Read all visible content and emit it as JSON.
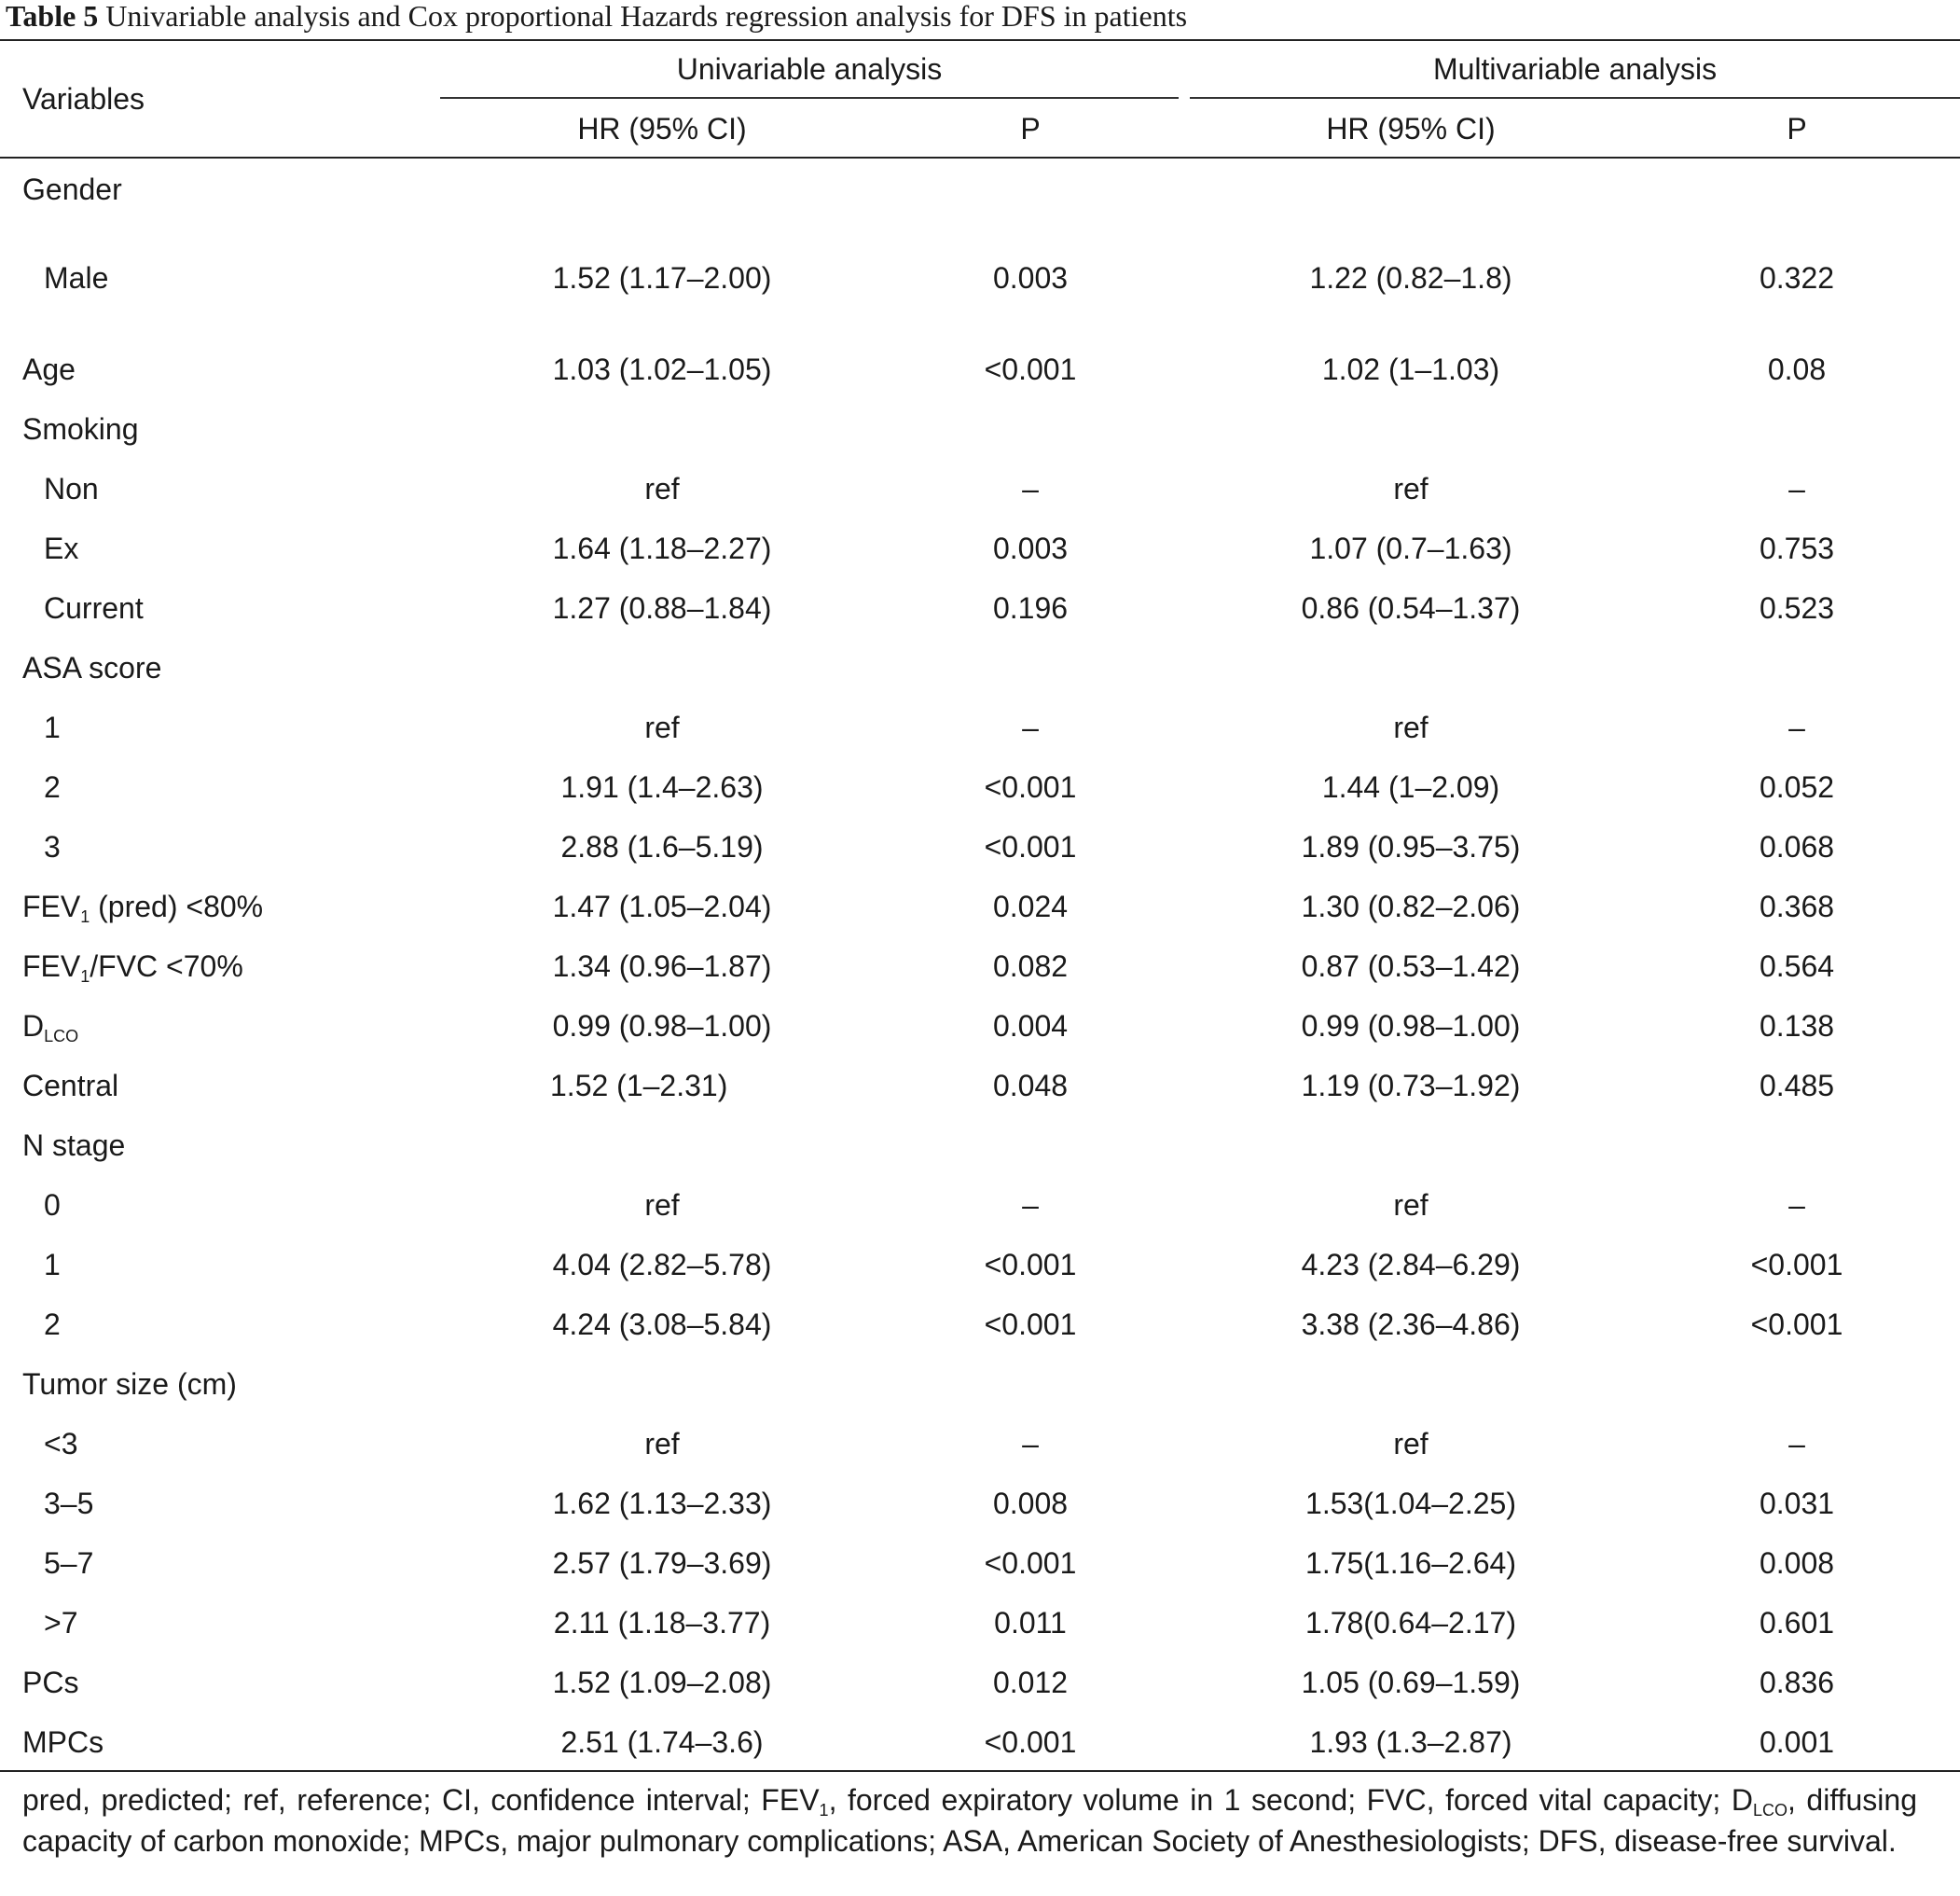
{
  "caption": {
    "label": "Table 5",
    "text": "Univariable analysis and Cox proportional Hazards regression analysis for DFS in patients"
  },
  "header": {
    "variables": "Variables",
    "univariable": "Univariable analysis",
    "multivariable": "Multivariable analysis",
    "uni_hr": "HR (95% CI)",
    "uni_p": "P",
    "multi_hr": "HR (95% CI)",
    "multi_p": "P"
  },
  "rows": [
    {
      "label": "Gender",
      "uni_hr": "",
      "uni_p": "",
      "multi_hr": "",
      "multi_p": ""
    },
    {
      "label": "Male",
      "uni_hr": "1.52 (1.17–2.00)",
      "uni_p": "0.003",
      "multi_hr": "1.22 (0.82–1.8)",
      "multi_p": "0.322"
    },
    {
      "label": "Age",
      "uni_hr": "1.03 (1.02–1.05)",
      "uni_p": "<0.001",
      "multi_hr": "1.02 (1–1.03)",
      "multi_p": "0.08"
    },
    {
      "label": "Smoking",
      "uni_hr": "",
      "uni_p": "",
      "multi_hr": "",
      "multi_p": ""
    },
    {
      "label": "Non",
      "uni_hr": "ref",
      "uni_p": "–",
      "multi_hr": "ref",
      "multi_p": "–"
    },
    {
      "label": "Ex",
      "uni_hr": "1.64 (1.18–2.27)",
      "uni_p": "0.003",
      "multi_hr": "1.07 (0.7–1.63)",
      "multi_p": "0.753"
    },
    {
      "label": "Current",
      "uni_hr": "1.27 (0.88–1.84)",
      "uni_p": "0.196",
      "multi_hr": "0.86 (0.54–1.37)",
      "multi_p": "0.523"
    },
    {
      "label": "ASA score",
      "uni_hr": "",
      "uni_p": "",
      "multi_hr": "",
      "multi_p": ""
    },
    {
      "label": "1",
      "uni_hr": "ref",
      "uni_p": "–",
      "multi_hr": "ref",
      "multi_p": "–"
    },
    {
      "label": "2",
      "uni_hr": "1.91 (1.4–2.63)",
      "uni_p": "<0.001",
      "multi_hr": "1.44 (1–2.09)",
      "multi_p": "0.052"
    },
    {
      "label": "3",
      "uni_hr": "2.88 (1.6–5.19)",
      "uni_p": "<0.001",
      "multi_hr": "1.89 (0.95–3.75)",
      "multi_p": "0.068"
    },
    {
      "label_main": "FEV",
      "label_sub": "1",
      "label_rest": " (pred) <80%",
      "uni_hr": "1.47 (1.05–2.04)",
      "uni_p": "0.024",
      "multi_hr": "1.30 (0.82–2.06)",
      "multi_p": "0.368"
    },
    {
      "label_main": "FEV",
      "label_sub": "1",
      "label_rest": "/FVC <70%",
      "uni_hr": "1.34 (0.96–1.87)",
      "uni_p": "0.082",
      "multi_hr": "0.87 (0.53–1.42)",
      "multi_p": "0.564"
    },
    {
      "label_main": "D",
      "label_sub": "LCO",
      "label_rest": "",
      "uni_hr": "0.99 (0.98–1.00)",
      "uni_p": "0.004",
      "multi_hr": "0.99 (0.98–1.00)",
      "multi_p": "0.138"
    },
    {
      "label": "Central",
      "uni_hr": "1.52 (1–2.31)",
      "uni_p": "0.048",
      "multi_hr": "1.19 (0.73–1.92)",
      "multi_p": "0.485"
    },
    {
      "label": "N stage",
      "uni_hr": "",
      "uni_p": "",
      "multi_hr": "",
      "multi_p": ""
    },
    {
      "label": "0",
      "uni_hr": "ref",
      "uni_p": "–",
      "multi_hr": "ref",
      "multi_p": "–"
    },
    {
      "label": "1",
      "uni_hr": "4.04 (2.82–5.78)",
      "uni_p": "<0.001",
      "multi_hr": "4.23 (2.84–6.29)",
      "multi_p": "<0.001"
    },
    {
      "label": "2",
      "uni_hr": "4.24 (3.08–5.84)",
      "uni_p": "<0.001",
      "multi_hr": "3.38 (2.36–4.86)",
      "multi_p": "<0.001"
    },
    {
      "label": "Tumor size (cm)",
      "uni_hr": "",
      "uni_p": "",
      "multi_hr": "",
      "multi_p": ""
    },
    {
      "label": "<3",
      "uni_hr": "ref",
      "uni_p": "–",
      "multi_hr": "ref",
      "multi_p": "–"
    },
    {
      "label": "3–5",
      "uni_hr": "1.62 (1.13–2.33)",
      "uni_p": "0.008",
      "multi_hr": "1.53(1.04–2.25)",
      "multi_p": "0.031"
    },
    {
      "label": "5–7",
      "uni_hr": "2.57 (1.79–3.69)",
      "uni_p": "<0.001",
      "multi_hr": "1.75(1.16–2.64)",
      "multi_p": "0.008"
    },
    {
      "label": ">7",
      "uni_hr": "2.11 (1.18–3.77)",
      "uni_p": "0.011",
      "multi_hr": "1.78(0.64–2.17)",
      "multi_p": "0.601"
    },
    {
      "label": "PCs",
      "uni_hr": "1.52 (1.09–2.08)",
      "uni_p": "0.012",
      "multi_hr": "1.05 (0.69–1.59)",
      "multi_p": "0.836"
    },
    {
      "label": "MPCs",
      "uni_hr": "2.51 (1.74–3.6)",
      "uni_p": "<0.001",
      "multi_hr": "1.93 (1.3–2.87)",
      "multi_p": "0.001"
    }
  ],
  "footnote": {
    "part1": "pred, predicted; ref, reference; CI, confidence interval; FEV",
    "sub1": "1",
    "part2": ", forced expiratory volume in 1 second; FVC, forced vital capacity; D",
    "sub2": "LCO",
    "part3": ", diffusing capacity of carbon monoxide; MPCs, major pulmonary complications; ASA, American Society of Anesthesiologists; DFS, disease-free survival."
  }
}
